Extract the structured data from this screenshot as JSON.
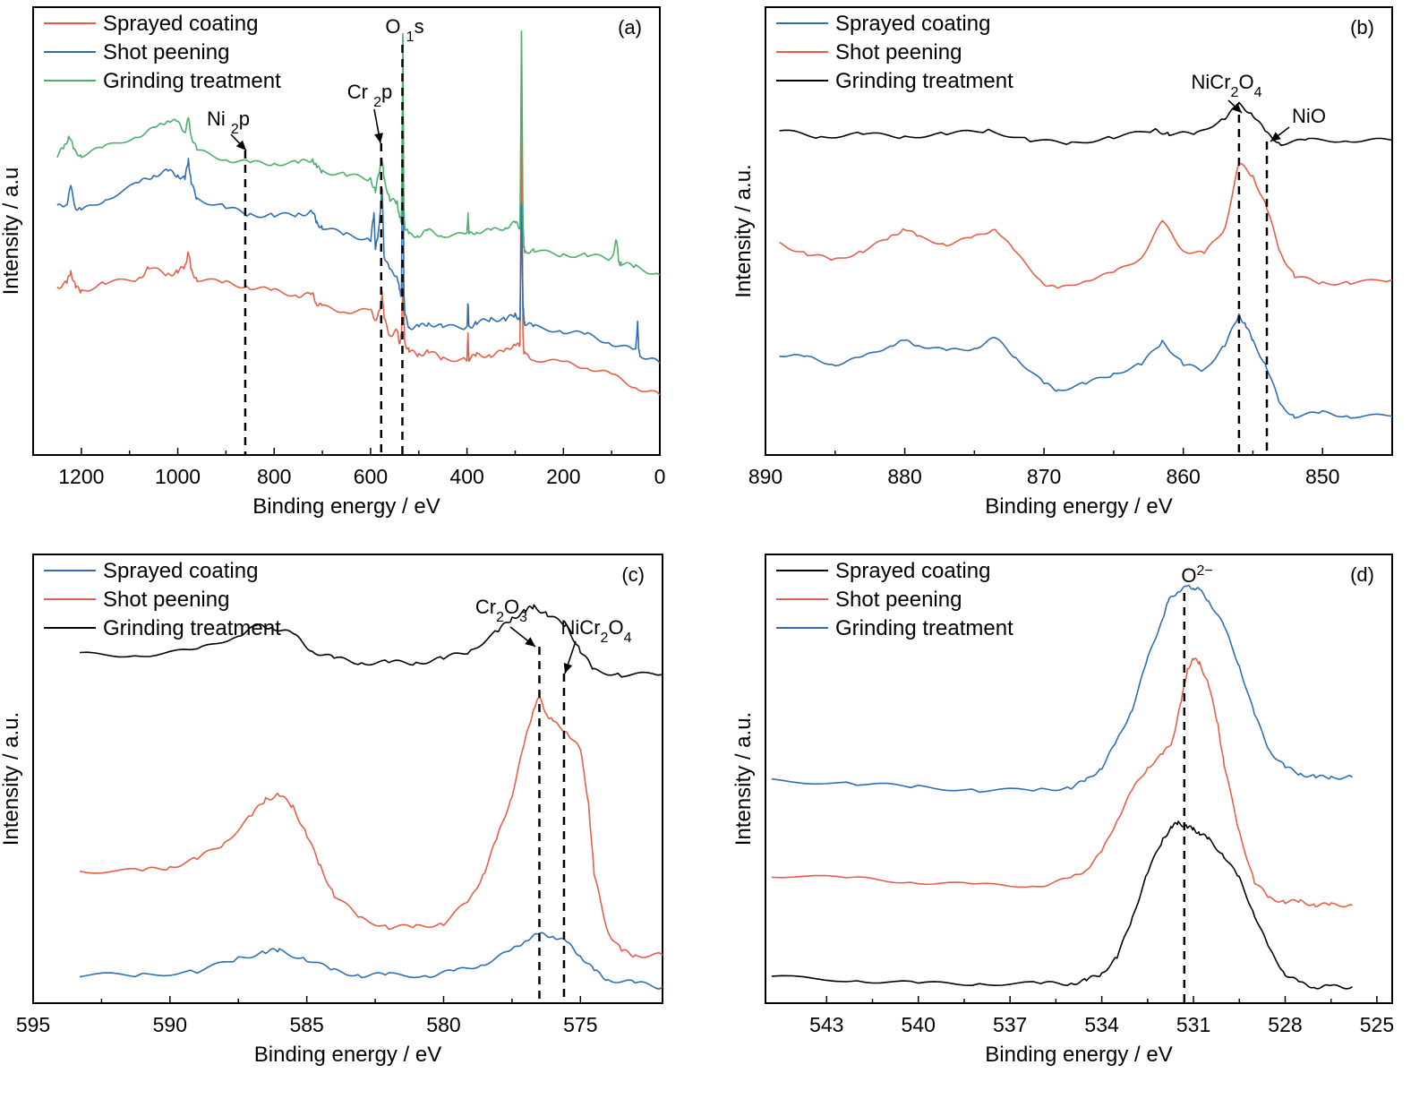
{
  "colors": {
    "red": "#e4604b",
    "blue": "#2f6fb0",
    "green": "#4caf6a",
    "black": "#000000"
  },
  "chart_data": [
    {
      "type": "line",
      "panel_label": "(a)",
      "xlabel": "Binding energy / eV",
      "ylabel": "Intensity / a.u",
      "xlim": [
        1300,
        0
      ],
      "x_ticks": [
        1200,
        1000,
        800,
        600,
        400,
        200,
        0
      ],
      "series": [
        {
          "name": "Sprayed coating",
          "color": "red",
          "x": [
            1250,
            1230,
            1222,
            1212,
            1200,
            1150,
            1080,
            1060,
            1020,
            1000,
            985,
            978,
            972,
            960,
            900,
            850,
            800,
            750,
            720,
            712,
            700,
            650,
            600,
            590,
            580,
            576,
            572,
            560,
            545,
            540,
            536,
            533,
            531,
            529,
            520,
            500,
            480,
            450,
            400,
            398,
            396,
            380,
            350,
            320,
            300,
            290,
            287,
            284,
            282,
            280,
            260,
            200,
            150,
            100,
            50,
            0
          ],
          "y": [
            0.42,
            0.43,
            0.46,
            0.42,
            0.41,
            0.43,
            0.44,
            0.47,
            0.45,
            0.46,
            0.47,
            0.51,
            0.46,
            0.44,
            0.43,
            0.42,
            0.41,
            0.4,
            0.4,
            0.38,
            0.37,
            0.36,
            0.36,
            0.34,
            0.36,
            0.41,
            0.34,
            0.3,
            0.31,
            0.28,
            0.3,
            0.43,
            0.35,
            0.28,
            0.26,
            0.25,
            0.26,
            0.24,
            0.24,
            0.3,
            0.24,
            0.25,
            0.25,
            0.26,
            0.28,
            0.27,
            0.92,
            0.3,
            0.26,
            0.25,
            0.24,
            0.23,
            0.22,
            0.2,
            0.17,
            0.15
          ]
        },
        {
          "name": "Shot peening",
          "color": "blue",
          "x": [
            1250,
            1230,
            1222,
            1212,
            1200,
            1150,
            1080,
            1050,
            1020,
            1000,
            985,
            978,
            972,
            960,
            900,
            850,
            800,
            750,
            720,
            712,
            700,
            650,
            600,
            593,
            590,
            585,
            580,
            576,
            572,
            560,
            545,
            540,
            536,
            533,
            531,
            529,
            520,
            500,
            480,
            450,
            400,
            398,
            396,
            380,
            350,
            320,
            300,
            290,
            287,
            284,
            282,
            280,
            260,
            200,
            150,
            100,
            50,
            46,
            44,
            40,
            0
          ],
          "y": [
            0.62,
            0.63,
            0.67,
            0.62,
            0.61,
            0.64,
            0.68,
            0.7,
            0.71,
            0.7,
            0.69,
            0.74,
            0.68,
            0.64,
            0.62,
            0.6,
            0.6,
            0.6,
            0.61,
            0.58,
            0.57,
            0.55,
            0.54,
            0.6,
            0.52,
            0.54,
            0.61,
            0.66,
            0.5,
            0.46,
            0.45,
            0.41,
            0.4,
            0.95,
            0.42,
            0.35,
            0.32,
            0.32,
            0.33,
            0.32,
            0.32,
            0.38,
            0.32,
            0.33,
            0.34,
            0.34,
            0.35,
            0.34,
            0.62,
            0.38,
            0.34,
            0.33,
            0.32,
            0.31,
            0.3,
            0.28,
            0.26,
            0.34,
            0.26,
            0.25,
            0.23
          ]
        },
        {
          "name": "Grinding treatment",
          "color": "green",
          "x": [
            1250,
            1235,
            1225,
            1215,
            1200,
            1150,
            1080,
            1040,
            1020,
            1000,
            985,
            978,
            972,
            960,
            900,
            850,
            800,
            750,
            720,
            712,
            700,
            650,
            600,
            590,
            580,
            576,
            572,
            560,
            545,
            540,
            536,
            533,
            531,
            529,
            520,
            500,
            480,
            450,
            400,
            398,
            396,
            380,
            350,
            320,
            300,
            290,
            287,
            284,
            282,
            280,
            260,
            200,
            150,
            100,
            90,
            85,
            80,
            50,
            0
          ],
          "y": [
            0.75,
            0.77,
            0.8,
            0.76,
            0.75,
            0.77,
            0.8,
            0.82,
            0.84,
            0.83,
            0.81,
            0.84,
            0.8,
            0.76,
            0.74,
            0.73,
            0.73,
            0.73,
            0.74,
            0.72,
            0.71,
            0.7,
            0.69,
            0.66,
            0.72,
            0.74,
            0.69,
            0.64,
            0.63,
            0.6,
            0.58,
            1.06,
            0.62,
            0.57,
            0.55,
            0.55,
            0.56,
            0.55,
            0.55,
            0.61,
            0.55,
            0.56,
            0.56,
            0.57,
            0.58,
            0.57,
            1.06,
            0.6,
            0.52,
            0.51,
            0.51,
            0.5,
            0.5,
            0.49,
            0.54,
            0.48,
            0.48,
            0.47,
            0.45
          ]
        }
      ],
      "vlines": [
        860,
        578,
        534
      ],
      "annotations": [
        "Ni 2p",
        "Cr 2p",
        "O 1s"
      ],
      "legend": "top-left",
      "grid": false
    },
    {
      "type": "line",
      "panel_label": "(b)",
      "xlabel": "Binding energy / eV",
      "ylabel": "Intensity / a.u.",
      "xlim": [
        890,
        845
      ],
      "x_ticks": [
        890,
        880,
        870,
        860,
        850
      ],
      "series": [
        {
          "name": "Sprayed coating",
          "color": "blue",
          "x": [
            889,
            887,
            885,
            883,
            881,
            880,
            879,
            877,
            875,
            873.5,
            872,
            870,
            869,
            867,
            865,
            863,
            861.5,
            860,
            858.5,
            857,
            856,
            855.5,
            855,
            854,
            853,
            852,
            850,
            848,
            845
          ],
          "y": [
            0.31,
            0.3,
            0.28,
            0.3,
            0.34,
            0.35,
            0.34,
            0.32,
            0.33,
            0.36,
            0.3,
            0.22,
            0.2,
            0.22,
            0.25,
            0.28,
            0.35,
            0.28,
            0.26,
            0.34,
            0.43,
            0.4,
            0.35,
            0.27,
            0.15,
            0.12,
            0.13,
            0.12,
            0.12
          ]
        },
        {
          "name": "Shot peening",
          "color": "red",
          "x": [
            889,
            887,
            885,
            883,
            881,
            880,
            879,
            877,
            875,
            873.5,
            872,
            870,
            869,
            867,
            865,
            863,
            861.5,
            860,
            858.5,
            857,
            856,
            855,
            854,
            853,
            852,
            850,
            848,
            845
          ],
          "y": [
            0.65,
            0.62,
            0.6,
            0.63,
            0.67,
            0.7,
            0.67,
            0.65,
            0.67,
            0.7,
            0.62,
            0.53,
            0.51,
            0.54,
            0.56,
            0.61,
            0.72,
            0.63,
            0.62,
            0.7,
            0.9,
            0.86,
            0.76,
            0.62,
            0.55,
            0.53,
            0.53,
            0.54
          ]
        },
        {
          "name": "Grinding treatment",
          "color": "black",
          "x": [
            889,
            886,
            883,
            880,
            877,
            874,
            871,
            868,
            865,
            862,
            861,
            859,
            857,
            856,
            855,
            854,
            853,
            851,
            848,
            845
          ],
          "y": [
            1.0,
            0.98,
            0.99,
            0.98,
            0.99,
            1.0,
            0.97,
            0.96,
            0.98,
            1.0,
            0.99,
            0.99,
            1.04,
            1.08,
            1.05,
            0.99,
            0.96,
            0.97,
            0.97,
            0.97
          ]
        }
      ],
      "vlines": [
        856,
        854
      ],
      "annotations": [
        "NiCr2O4",
        "NiO"
      ],
      "legend": "top-left",
      "grid": false
    },
    {
      "type": "line",
      "panel_label": "(c)",
      "xlabel": "Binding energy / eV",
      "ylabel": "Intensity / a.u.",
      "xlim": [
        595,
        572
      ],
      "x_ticks": [
        595,
        590,
        585,
        580,
        575
      ],
      "series": [
        {
          "name": "Sprayed coating",
          "color": "blue",
          "x": [
            593.3,
            591,
            589,
            587.5,
            586.5,
            586,
            585,
            584,
            583,
            582,
            580.5,
            579.5,
            578.5,
            577.5,
            577,
            576.5,
            576,
            575.5,
            575,
            574.5,
            574,
            573,
            572
          ],
          "y": [
            0.07,
            0.07,
            0.08,
            0.11,
            0.13,
            0.13,
            0.11,
            0.08,
            0.07,
            0.07,
            0.07,
            0.08,
            0.1,
            0.13,
            0.16,
            0.17,
            0.17,
            0.15,
            0.12,
            0.08,
            0.06,
            0.05,
            0.04
          ]
        },
        {
          "name": "Shot peening",
          "color": "red",
          "x": [
            593.3,
            591,
            590,
            589,
            588,
            587,
            586.5,
            586,
            585.5,
            585,
            584.5,
            584,
            583,
            582,
            581,
            580,
            579,
            578.5,
            578,
            577.5,
            577,
            576.7,
            576.5,
            576.2,
            576,
            575.5,
            575,
            574.7,
            574.5,
            574,
            573.5,
            573,
            572
          ],
          "y": [
            0.33,
            0.33,
            0.34,
            0.36,
            0.4,
            0.47,
            0.51,
            0.52,
            0.49,
            0.42,
            0.34,
            0.27,
            0.21,
            0.19,
            0.19,
            0.2,
            0.26,
            0.33,
            0.42,
            0.52,
            0.66,
            0.74,
            0.76,
            0.72,
            0.7,
            0.68,
            0.63,
            0.5,
            0.32,
            0.18,
            0.13,
            0.12,
            0.12
          ]
        },
        {
          "name": "Grinding treatment",
          "color": "black",
          "x": [
            593.3,
            591,
            589,
            587.5,
            586.8,
            586.3,
            585.5,
            584.8,
            584,
            583,
            582,
            581,
            580,
            579,
            578,
            577.5,
            577,
            576.7,
            576.2,
            575.5,
            575,
            574.5,
            573.5,
            572
          ],
          "y": [
            0.87,
            0.87,
            0.88,
            0.92,
            0.94,
            0.94,
            0.92,
            0.88,
            0.86,
            0.85,
            0.85,
            0.85,
            0.86,
            0.88,
            0.93,
            0.96,
            0.98,
            0.99,
            0.97,
            0.94,
            0.88,
            0.83,
            0.82,
            0.82
          ]
        }
      ],
      "vlines": [
        576.5,
        575.6
      ],
      "annotations": [
        "Cr2O3",
        "NiCr2O4"
      ],
      "legend": "top-left",
      "grid": false
    },
    {
      "type": "line",
      "panel_label": "(d)",
      "xlabel": "Binding energy / eV",
      "ylabel": "Intensity / a.u.",
      "xlim": [
        545,
        524.5
      ],
      "x_ticks": [
        543,
        540,
        537,
        534,
        531,
        528,
        525
      ],
      "series": [
        {
          "name": "Sprayed coating",
          "color": "black",
          "x": [
            544.8,
            542,
            540,
            538,
            536,
            535,
            534.5,
            534,
            533.5,
            533,
            532.5,
            532,
            531.7,
            531.5,
            531.2,
            531,
            530.8,
            530.5,
            530,
            529.5,
            529,
            528.5,
            528,
            527.5,
            527,
            526.5,
            525.8
          ],
          "y": [
            0.08,
            0.07,
            0.06,
            0.06,
            0.06,
            0.06,
            0.07,
            0.09,
            0.14,
            0.26,
            0.4,
            0.5,
            0.54,
            0.55,
            0.54,
            0.53,
            0.52,
            0.5,
            0.45,
            0.38,
            0.27,
            0.16,
            0.09,
            0.06,
            0.05,
            0.05,
            0.05
          ]
        },
        {
          "name": "Shot peening",
          "color": "red",
          "x": [
            544.8,
            542,
            540,
            538,
            536,
            535,
            534.5,
            534,
            533.5,
            533,
            532.5,
            532,
            531.7,
            531.4,
            531.2,
            531,
            530.8,
            530.5,
            530.2,
            530,
            529.5,
            529,
            528.5,
            528,
            527.5,
            527,
            526.5,
            525.8
          ],
          "y": [
            0.39,
            0.38,
            0.37,
            0.36,
            0.36,
            0.38,
            0.41,
            0.46,
            0.56,
            0.65,
            0.72,
            0.76,
            0.8,
            0.92,
            1.02,
            1.05,
            1.04,
            0.97,
            0.85,
            0.73,
            0.52,
            0.37,
            0.32,
            0.31,
            0.31,
            0.3,
            0.3,
            0.3
          ]
        },
        {
          "name": "Grinding treatment",
          "color": "blue",
          "x": [
            544.8,
            542,
            540,
            538,
            536,
            535,
            534.5,
            534,
            533.5,
            533,
            532.5,
            532,
            531.8,
            531.5,
            531.2,
            531,
            530.8,
            530.5,
            530,
            529.5,
            529,
            528.5,
            528,
            527.5,
            527,
            526.5,
            525.8
          ],
          "y": [
            0.68,
            0.67,
            0.66,
            0.65,
            0.65,
            0.66,
            0.68,
            0.72,
            0.8,
            0.9,
            1.05,
            1.18,
            1.23,
            1.26,
            1.27,
            1.27,
            1.26,
            1.23,
            1.15,
            1.03,
            0.88,
            0.77,
            0.72,
            0.7,
            0.69,
            0.69,
            0.69
          ]
        }
      ],
      "vlines": [
        531.3
      ],
      "annotations": [
        "O2−"
      ],
      "legend": "top-left",
      "grid": false
    }
  ]
}
